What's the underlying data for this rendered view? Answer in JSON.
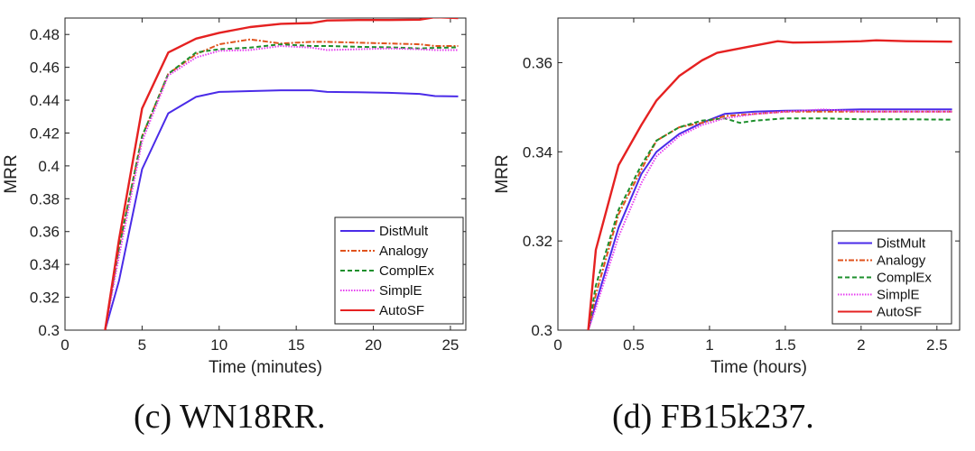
{
  "captions": {
    "left": "(c)  WN18RR.",
    "right": "(d)  FB15k237."
  },
  "series_styles": [
    {
      "name": "DistMult",
      "color": "#4a2be8",
      "dash": ""
    },
    {
      "name": "Analogy",
      "color": "#e0521c",
      "dash": "6,2,2,2"
    },
    {
      "name": "ComplEx",
      "color": "#1d8f2c",
      "dash": "5,3"
    },
    {
      "name": "SimplE",
      "color": "#e63cf0",
      "dash": "1.5,1.5"
    },
    {
      "name": "AutoSF",
      "color": "#e52121",
      "dash": ""
    }
  ],
  "chart_data": [
    {
      "type": "line",
      "title": "",
      "xlabel": "Time (minutes)",
      "ylabel": "MRR",
      "xlim": [
        0,
        26
      ],
      "ylim": [
        0.3,
        0.49
      ],
      "xticks": [
        0,
        5,
        10,
        15,
        20,
        25
      ],
      "xtick_labels": [
        "0",
        "5",
        "10",
        "15",
        "20",
        "25"
      ],
      "yticks": [
        0.3,
        0.32,
        0.34,
        0.36,
        0.38,
        0.4,
        0.42,
        0.44,
        0.46,
        0.48
      ],
      "ytick_labels": [
        "0.3",
        "0.32",
        "0.34",
        "0.36",
        "0.38",
        "0.4",
        "0.42",
        "0.44",
        "0.46",
        "0.48"
      ],
      "legend_position": "bottom-right",
      "series": [
        {
          "name": "DistMult",
          "x": [
            2.6,
            3.5,
            5,
            6.7,
            8.5,
            10,
            12,
            14,
            16,
            17,
            19,
            21,
            23,
            24,
            25.5
          ],
          "values": [
            0.3,
            0.33,
            0.398,
            0.432,
            0.442,
            0.445,
            0.4455,
            0.446,
            0.446,
            0.445,
            0.4448,
            0.4445,
            0.4438,
            0.4425,
            0.4423
          ]
        },
        {
          "name": "Analogy",
          "x": [
            2.6,
            3.5,
            5,
            6.7,
            8.5,
            10,
            12,
            14,
            16,
            17,
            19,
            21,
            23,
            24,
            25.5
          ],
          "values": [
            0.3,
            0.35,
            0.418,
            0.456,
            0.468,
            0.474,
            0.477,
            0.4745,
            0.4755,
            0.4755,
            0.475,
            0.4745,
            0.474,
            0.473,
            0.473
          ]
        },
        {
          "name": "ComplEx",
          "x": [
            2.6,
            3.5,
            5,
            6.7,
            8.5,
            10,
            12,
            14,
            16,
            17,
            19,
            21,
            23,
            24,
            25.5
          ],
          "values": [
            0.3,
            0.35,
            0.418,
            0.456,
            0.469,
            0.471,
            0.472,
            0.474,
            0.473,
            0.473,
            0.4725,
            0.4722,
            0.4715,
            0.4718,
            0.4722
          ]
        },
        {
          "name": "SimplE",
          "x": [
            2.6,
            3.5,
            5,
            6.7,
            8.5,
            10,
            12,
            14,
            16,
            17,
            19,
            21,
            23,
            24,
            25.5
          ],
          "values": [
            0.3,
            0.345,
            0.415,
            0.455,
            0.466,
            0.47,
            0.4705,
            0.473,
            0.472,
            0.4705,
            0.471,
            0.4715,
            0.471,
            0.4705,
            0.4705
          ]
        },
        {
          "name": "AutoSF",
          "x": [
            2.6,
            3.5,
            5,
            6.7,
            8.5,
            10,
            12,
            14,
            16,
            17,
            19,
            21,
            23,
            24,
            25.5
          ],
          "values": [
            0.3,
            0.355,
            0.435,
            0.469,
            0.4775,
            0.481,
            0.4845,
            0.4865,
            0.487,
            0.4885,
            0.4888,
            0.4888,
            0.489,
            0.4905,
            0.49
          ]
        }
      ]
    },
    {
      "type": "line",
      "title": "",
      "xlabel": "Time (hours)",
      "ylabel": "MRR",
      "xlim": [
        0,
        2.65
      ],
      "ylim": [
        0.3,
        0.37
      ],
      "xticks": [
        0,
        0.5,
        1,
        1.5,
        2,
        2.5
      ],
      "xtick_labels": [
        "0",
        "0.5",
        "1",
        "1.5",
        "2",
        "2.5"
      ],
      "yticks": [
        0.3,
        0.32,
        0.34,
        0.36
      ],
      "ytick_labels": [
        "0.3",
        "0.32",
        "0.34",
        "0.36"
      ],
      "legend_position": "bottom-right",
      "series": [
        {
          "name": "DistMult",
          "x": [
            0.2,
            0.25,
            0.4,
            0.55,
            0.65,
            0.8,
            0.95,
            1.1,
            1.3,
            1.5,
            1.75,
            2.0,
            2.3,
            2.6
          ],
          "values": [
            0.3,
            0.306,
            0.323,
            0.335,
            0.34,
            0.344,
            0.3465,
            0.3485,
            0.349,
            0.3492,
            0.3493,
            0.3495,
            0.3495,
            0.3495
          ]
        },
        {
          "name": "Analogy",
          "x": [
            0.2,
            0.25,
            0.4,
            0.55,
            0.65,
            0.8,
            0.95,
            1.1,
            1.3,
            1.5,
            1.75,
            2.0,
            2.3,
            2.6
          ],
          "values": [
            0.3,
            0.308,
            0.326,
            0.336,
            0.3425,
            0.3455,
            0.3465,
            0.348,
            0.3485,
            0.349,
            0.349,
            0.349,
            0.349,
            0.349
          ]
        },
        {
          "name": "ComplEx",
          "x": [
            0.2,
            0.25,
            0.4,
            0.55,
            0.65,
            0.8,
            0.95,
            1.1,
            1.2,
            1.3,
            1.5,
            1.75,
            2.0,
            2.3,
            2.6
          ],
          "values": [
            0.3,
            0.31,
            0.327,
            0.337,
            0.3425,
            0.3455,
            0.347,
            0.3475,
            0.3465,
            0.347,
            0.3475,
            0.3475,
            0.3473,
            0.3473,
            0.3472
          ]
        },
        {
          "name": "SimplE",
          "x": [
            0.2,
            0.25,
            0.4,
            0.55,
            0.65,
            0.8,
            0.95,
            1.1,
            1.3,
            1.5,
            1.75,
            2.0,
            2.3,
            2.6
          ],
          "values": [
            0.3,
            0.305,
            0.321,
            0.333,
            0.339,
            0.3435,
            0.346,
            0.3475,
            0.3485,
            0.349,
            0.3495,
            0.349,
            0.349,
            0.349
          ]
        },
        {
          "name": "AutoSF",
          "x": [
            0.2,
            0.25,
            0.4,
            0.55,
            0.65,
            0.8,
            0.95,
            1.05,
            1.25,
            1.45,
            1.55,
            1.75,
            2.0,
            2.1,
            2.3,
            2.6
          ],
          "values": [
            0.3,
            0.318,
            0.337,
            0.346,
            0.3515,
            0.357,
            0.3605,
            0.3622,
            0.3635,
            0.3648,
            0.3645,
            0.3646,
            0.3648,
            0.365,
            0.3648,
            0.3647
          ]
        }
      ]
    }
  ]
}
